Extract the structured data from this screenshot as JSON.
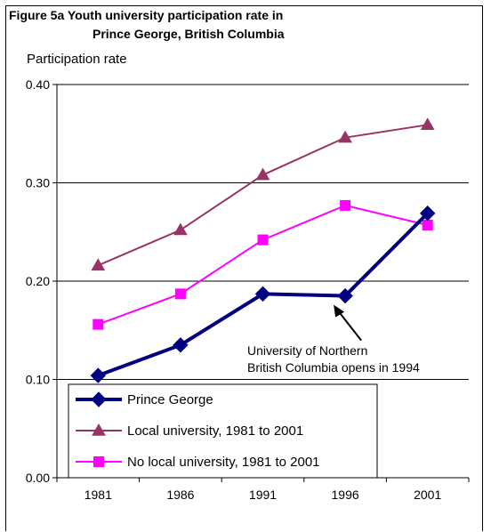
{
  "chart_data": {
    "type": "line",
    "title_line1": "Figure 5a  Youth university participation rate in",
    "title_line2": "Prince George, British Columbia",
    "ylabel": "Participation rate",
    "xlabel": "",
    "categories": [
      "1981",
      "1986",
      "1991",
      "1996",
      "2001"
    ],
    "ylim": [
      0.0,
      0.4
    ],
    "yticks": [
      "0.00",
      "0.10",
      "0.20",
      "0.30",
      "0.40"
    ],
    "ytick_values": [
      0.0,
      0.1,
      0.2,
      0.3,
      0.4
    ],
    "grid": "horizontal",
    "legend_position": "bottom-left",
    "series": [
      {
        "name": "Prince George",
        "values": [
          0.104,
          0.135,
          0.187,
          0.185,
          0.269
        ],
        "color": "#000080",
        "marker": "diamond"
      },
      {
        "name": "Local university, 1981 to 2001",
        "values": [
          0.216,
          0.252,
          0.308,
          0.346,
          0.359
        ],
        "color": "#993366",
        "marker": "triangle"
      },
      {
        "name": "No local university, 1981 to 2001",
        "values": [
          0.156,
          0.187,
          0.242,
          0.277,
          0.257
        ],
        "color": "#ff00ff",
        "marker": "square"
      }
    ],
    "annotation": {
      "line1": "University of Northern",
      "line2": "British Columbia opens in 1994",
      "points_to": {
        "x": "1996",
        "y": 0.185
      }
    }
  }
}
